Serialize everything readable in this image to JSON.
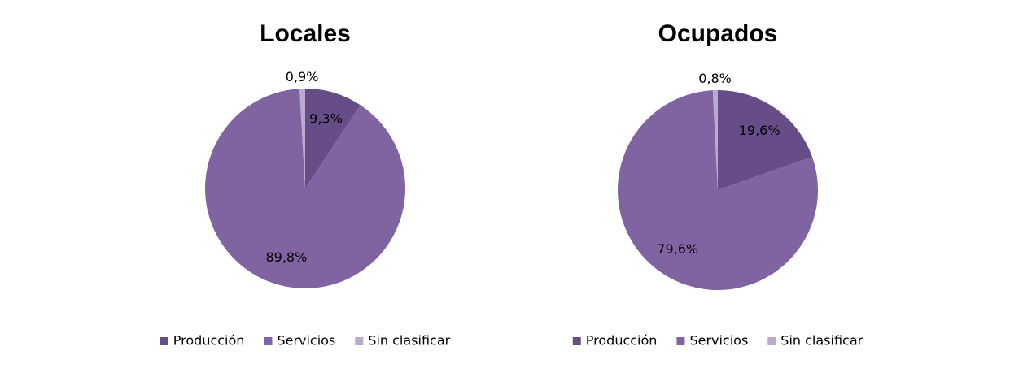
{
  "chart_data": [
    {
      "type": "pie",
      "title": "Locales",
      "categories": [
        "Producción",
        "Servicios",
        "Sin clasificar"
      ],
      "values": [
        9.3,
        89.8,
        0.9
      ],
      "value_labels": [
        "9,3%",
        "89,8%",
        "0,9%"
      ],
      "colors": [
        "#664d88",
        "#8064a2",
        "#b9abcf"
      ]
    },
    {
      "type": "pie",
      "title": "Ocupados",
      "categories": [
        "Producción",
        "Servicios",
        "Sin clasificar"
      ],
      "values": [
        19.6,
        79.6,
        0.8
      ],
      "value_labels": [
        "19,6%",
        "79,6%",
        "0,8%"
      ],
      "colors": [
        "#664d88",
        "#8064a2",
        "#b9abcf"
      ]
    }
  ]
}
